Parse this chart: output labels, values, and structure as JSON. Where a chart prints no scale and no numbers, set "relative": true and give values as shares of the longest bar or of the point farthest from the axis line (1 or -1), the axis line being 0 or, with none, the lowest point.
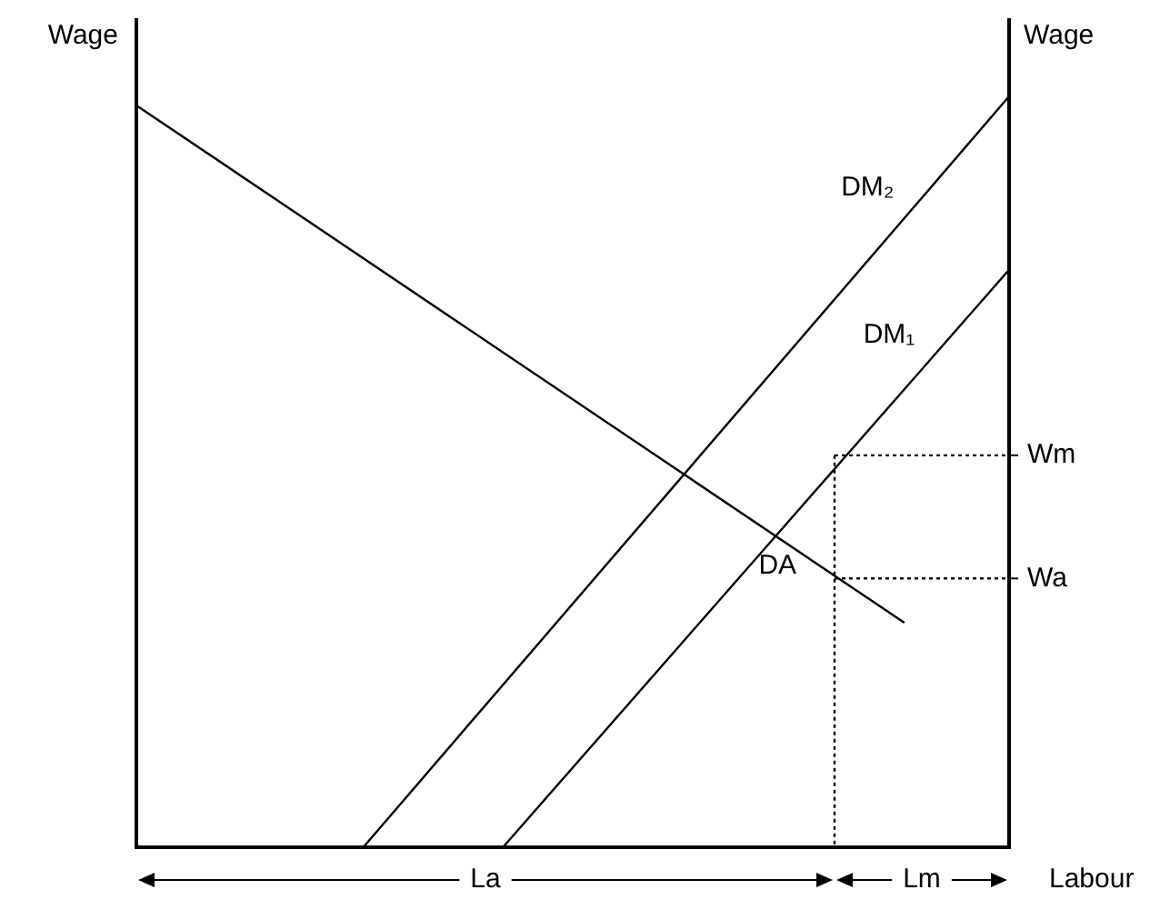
{
  "chart_data": {
    "type": "line",
    "relative": true,
    "ylabel": "Wage",
    "y2label": "Wage",
    "xlabel": "Labour",
    "legend": false,
    "marker": "none",
    "categories": [
      null,
      null,
      null,
      null,
      null,
      null,
      null,
      null,
      null,
      null,
      null,
      null,
      null,
      null,
      null,
      null,
      null,
      null,
      null,
      null,
      null,
      null,
      null,
      null,
      null,
      null,
      null,
      null,
      null,
      null,
      null,
      null,
      null,
      null,
      null,
      null,
      null,
      null,
      null,
      null,
      null,
      null,
      null,
      null,
      null,
      null,
      null,
      null,
      null,
      null,
      null
    ],
    "series": [
      {
        "name": "DA",
        "color": "#000000",
        "values": [
          0.988,
          null,
          null,
          null,
          null,
          null,
          null,
          null,
          null,
          null,
          null,
          null,
          null,
          null,
          null,
          null,
          null,
          null,
          null,
          null,
          null,
          null,
          null,
          null,
          null,
          null,
          null,
          null,
          null,
          null,
          null,
          null,
          null,
          null,
          null,
          null,
          null,
          null,
          null,
          null,
          null,
          null,
          null,
          null,
          0.299,
          null,
          null,
          null,
          null,
          null,
          null
        ]
      },
      {
        "name": "DM₂",
        "color": "#000000",
        "values": [
          null,
          null,
          null,
          null,
          null,
          null,
          null,
          null,
          null,
          null,
          null,
          null,
          null,
          0,
          null,
          null,
          null,
          null,
          null,
          null,
          null,
          null,
          null,
          null,
          null,
          null,
          null,
          null,
          null,
          null,
          null,
          null,
          null,
          null,
          null,
          null,
          null,
          null,
          null,
          null,
          null,
          null,
          null,
          null,
          null,
          null,
          null,
          null,
          null,
          null,
          1
        ]
      },
      {
        "name": "DM₁",
        "color": "#000000",
        "values": [
          null,
          null,
          null,
          null,
          null,
          null,
          null,
          null,
          null,
          null,
          null,
          null,
          null,
          null,
          null,
          null,
          null,
          null,
          null,
          null,
          null,
          0,
          null,
          null,
          null,
          null,
          null,
          null,
          null,
          null,
          null,
          null,
          null,
          null,
          null,
          null,
          null,
          null,
          null,
          null,
          null,
          null,
          null,
          null,
          null,
          null,
          null,
          null,
          null,
          null,
          0.769
        ]
      },
      {
        "color": "#000000",
        "line_style": "dotted",
        "values": [
          null,
          null,
          null,
          null,
          null,
          null,
          null,
          null,
          null,
          null,
          null,
          null,
          null,
          null,
          null,
          null,
          null,
          null,
          null,
          null,
          null,
          null,
          null,
          null,
          null,
          null,
          null,
          null,
          null,
          null,
          null,
          null,
          null,
          null,
          null,
          null,
          null,
          null,
          null,
          null,
          0.522,
          null,
          null,
          null,
          null,
          null,
          null,
          null,
          null,
          null,
          0.522
        ]
      },
      {
        "color": "#000000",
        "line_style": "dotted",
        "values": [
          null,
          null,
          null,
          null,
          null,
          null,
          null,
          null,
          null,
          null,
          null,
          null,
          null,
          null,
          null,
          null,
          null,
          null,
          null,
          null,
          null,
          null,
          null,
          null,
          null,
          null,
          null,
          null,
          null,
          null,
          null,
          null,
          null,
          null,
          null,
          null,
          null,
          null,
          null,
          null,
          0.358,
          null,
          null,
          null,
          null,
          null,
          null,
          null,
          null,
          null,
          0.358
        ]
      }
    ],
    "annotations": [
      "Wm",
      "Wa",
      "La",
      "Lm"
    ]
  }
}
